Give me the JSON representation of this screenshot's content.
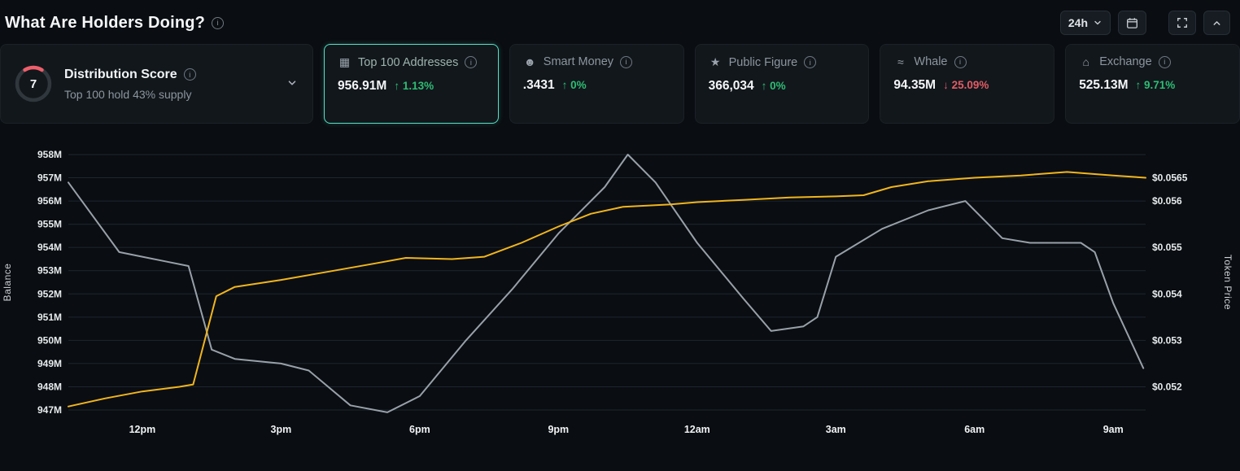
{
  "icons": {
    "info": "i"
  },
  "header": {
    "title": "What Are Holders Doing?",
    "range_label": "24h"
  },
  "cards": {
    "distribution": {
      "score": "7",
      "title": "Distribution Score",
      "subtitle": "Top 100 hold 43% supply",
      "gauge_arc_color": "#ee5f6b",
      "gauge_track_color": "#30373d"
    },
    "metrics": [
      {
        "id": "top-100-addresses",
        "icon": "▦",
        "label": "Top 100 Addresses",
        "value": "956.91M",
        "change": "1.13%",
        "direction": "up",
        "selected": true
      },
      {
        "id": "smart-money",
        "icon": "☻",
        "label": "Smart Money",
        "value": ".3431",
        "change": "0%",
        "direction": "up",
        "selected": false
      },
      {
        "id": "public-figure",
        "icon": "★",
        "label": "Public Figure",
        "value": "366,034",
        "change": "0%",
        "direction": "up",
        "selected": false
      },
      {
        "id": "whale",
        "icon": "≈",
        "label": "Whale",
        "value": "94.35M",
        "change": "25.09%",
        "direction": "down",
        "selected": false
      },
      {
        "id": "exchange",
        "icon": "⌂",
        "label": "Exchange",
        "value": "525.13M",
        "change": "9.71%",
        "direction": "up",
        "selected": false
      }
    ]
  },
  "chart_data": {
    "type": "line",
    "title": "What Are Holders Doing? — Top 100 Addresses balance vs token price (24h)",
    "grid": "horizontal",
    "legend": "none",
    "x_domain": [
      0,
      23.3
    ],
    "x_ticks": [
      {
        "label": "12pm",
        "t": 1.6
      },
      {
        "label": "3pm",
        "t": 4.6
      },
      {
        "label": "6pm",
        "t": 7.6
      },
      {
        "label": "9pm",
        "t": 10.6
      },
      {
        "label": "12am",
        "t": 13.6
      },
      {
        "label": "3am",
        "t": 16.6
      },
      {
        "label": "6am",
        "t": 19.6
      },
      {
        "label": "9am",
        "t": 22.6
      }
    ],
    "left_axis": {
      "title": "Balance",
      "ticks": [
        {
          "label": "958M",
          "value": 958
        },
        {
          "label": "957M",
          "value": 957
        },
        {
          "label": "956M",
          "value": 956
        },
        {
          "label": "955M",
          "value": 955
        },
        {
          "label": "954M",
          "value": 954
        },
        {
          "label": "953M",
          "value": 953
        },
        {
          "label": "952M",
          "value": 952
        },
        {
          "label": "951M",
          "value": 951
        },
        {
          "label": "950M",
          "value": 950
        },
        {
          "label": "949M",
          "value": 949
        },
        {
          "label": "948M",
          "value": 948
        },
        {
          "label": "947M",
          "value": 947
        }
      ]
    },
    "right_axis": {
      "title": "Token Price",
      "anchor_price": 0.052,
      "anchor_M": 948,
      "price_per_M": 0.0005,
      "ticks": [
        {
          "label": "$0.0565",
          "value": 0.0565
        },
        {
          "label": "$0.056",
          "value": 0.056
        },
        {
          "label": "$0.055",
          "value": 0.055
        },
        {
          "label": "$0.054",
          "value": 0.054
        },
        {
          "label": "$0.053",
          "value": 0.053
        },
        {
          "label": "$0.052",
          "value": 0.052
        }
      ]
    },
    "series": [
      {
        "name": "top-100-balance-line",
        "axis": "left",
        "color": "#f1b51d",
        "points": [
          [
            0,
            947.15
          ],
          [
            0.8,
            947.5
          ],
          [
            1.6,
            947.8
          ],
          [
            2.4,
            948.0
          ],
          [
            2.7,
            948.1
          ],
          [
            3.2,
            951.9
          ],
          [
            3.6,
            952.3
          ],
          [
            4.6,
            952.6
          ],
          [
            5.6,
            952.95
          ],
          [
            6.6,
            953.3
          ],
          [
            7.3,
            953.55
          ],
          [
            8.3,
            953.5
          ],
          [
            9.0,
            953.6
          ],
          [
            9.8,
            954.2
          ],
          [
            10.6,
            954.9
          ],
          [
            11.3,
            955.45
          ],
          [
            12.0,
            955.75
          ],
          [
            13.0,
            955.85
          ],
          [
            13.6,
            955.95
          ],
          [
            14.6,
            956.05
          ],
          [
            15.6,
            956.15
          ],
          [
            16.6,
            956.2
          ],
          [
            17.2,
            956.25
          ],
          [
            17.8,
            956.6
          ],
          [
            18.6,
            956.85
          ],
          [
            19.6,
            957.0
          ],
          [
            20.6,
            957.1
          ],
          [
            21.6,
            957.25
          ],
          [
            22.6,
            957.1
          ],
          [
            23.3,
            957.0
          ]
        ]
      },
      {
        "name": "token-price-line",
        "axis": "right",
        "color": "#98a1a9",
        "points": [
          [
            0,
            0.0564
          ],
          [
            1.1,
            0.0549
          ],
          [
            1.6,
            0.0548
          ],
          [
            2.1,
            0.0547
          ],
          [
            2.6,
            0.0546
          ],
          [
            3.1,
            0.0528
          ],
          [
            3.6,
            0.0526
          ],
          [
            4.6,
            0.0525
          ],
          [
            5.2,
            0.05235
          ],
          [
            6.1,
            0.0516
          ],
          [
            6.9,
            0.05145
          ],
          [
            7.6,
            0.0518
          ],
          [
            8.6,
            0.053
          ],
          [
            9.6,
            0.0541
          ],
          [
            10.6,
            0.0553
          ],
          [
            11.6,
            0.0563
          ],
          [
            12.1,
            0.057
          ],
          [
            12.7,
            0.0564
          ],
          [
            13.6,
            0.0551
          ],
          [
            14.6,
            0.0539
          ],
          [
            15.2,
            0.0532
          ],
          [
            15.9,
            0.0533
          ],
          [
            16.2,
            0.0535
          ],
          [
            16.6,
            0.0548
          ],
          [
            17.6,
            0.0554
          ],
          [
            18.6,
            0.0558
          ],
          [
            19.4,
            0.056
          ],
          [
            20.2,
            0.0552
          ],
          [
            20.8,
            0.0551
          ],
          [
            21.9,
            0.0551
          ],
          [
            22.2,
            0.0549
          ],
          [
            22.6,
            0.0538
          ],
          [
            23.25,
            0.0524
          ]
        ]
      }
    ]
  }
}
